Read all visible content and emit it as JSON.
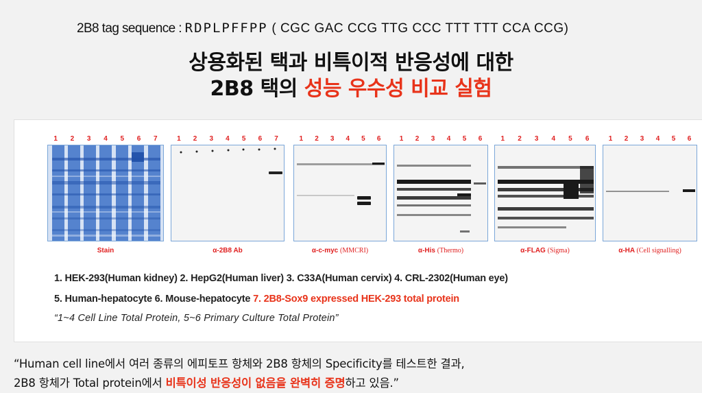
{
  "header": {
    "tag_label": "2B8 tag sequence : ",
    "tag_sequence": "RDPLPFFPP",
    "tag_codons": " ( CGC GAC CCG TTG CCC TTT TTT CCA CCG)"
  },
  "title": {
    "line1": "상용화된 택과 비특이적 반응성에 대한",
    "line2_black": "2B8 택의 ",
    "line2_red": "성능 우수성 비교 실험"
  },
  "blots": [
    {
      "lanes": [
        "1",
        "2",
        "3",
        "4",
        "5",
        "6",
        "7"
      ],
      "label": "Stain",
      "sub": ""
    },
    {
      "lanes": [
        "1",
        "2",
        "3",
        "4",
        "5",
        "6",
        "7"
      ],
      "label": "α-2B8 Ab",
      "sub": ""
    },
    {
      "lanes": [
        "1",
        "2",
        "3",
        "4",
        "5",
        "6"
      ],
      "label": "α-c-myc ",
      "sub": "(MMCRI)"
    },
    {
      "lanes": [
        "1",
        "2",
        "3",
        "4",
        "5",
        "6"
      ],
      "label": "α-His ",
      "sub": "(Thermo)"
    },
    {
      "lanes": [
        "1",
        "2",
        "3",
        "4",
        "5",
        "6"
      ],
      "label": "α-FLAG ",
      "sub": "(Sigma)"
    },
    {
      "lanes": [
        "1",
        "2",
        "3",
        "4",
        "5",
        "6"
      ],
      "label": "α-HA ",
      "sub": "(Cell signalling)"
    }
  ],
  "legend": {
    "line1": "1. HEK-293(Human kidney)  2. HepG2(Human liver)  3. C33A(Human cervix)  4. CRL-2302(Human eye)",
    "line2_black": "5. Human-hepatocyte  6. Mouse-hepatocyte  ",
    "line2_red": "7. 2B8-Sox9 expressed HEK-293 total protein",
    "line3": "“1~4 Cell Line Total Protein, 5~6 Primary Culture Total Protein”"
  },
  "caption": {
    "line1": "“Human cell line에서 여러 종류의 에피토프 항체와 2B8 항체의 Specificity를 테스트한 결과,",
    "line2_pre": " 2B8 항체가 Total protein에서 ",
    "line2_red": "비특이성 반응성이 없음을 완벽히 증명",
    "line2_post": "하고 있음.”"
  }
}
